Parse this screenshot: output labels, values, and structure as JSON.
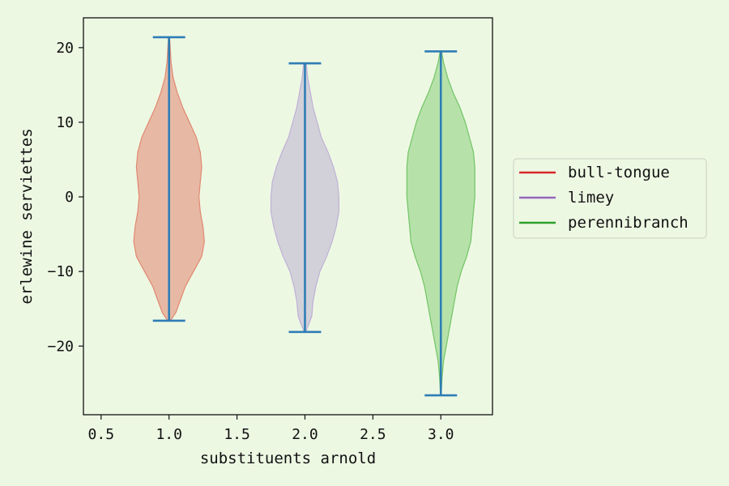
{
  "chart_data": {
    "type": "violin",
    "xlabel": "substituents arnold",
    "ylabel": "erlewine serviettes",
    "xlim": [
      0.37,
      3.38
    ],
    "ylim": [
      -29.2,
      24.0
    ],
    "xticks": [
      0.5,
      1.0,
      1.5,
      2.0,
      2.5,
      3.0
    ],
    "xtick_labels": [
      "0.5",
      "1.0",
      "1.5",
      "2.0",
      "2.5",
      "3.0"
    ],
    "yticks": [
      -20,
      -10,
      0,
      10,
      20
    ],
    "ytick_labels": [
      "−20",
      "−10",
      "0",
      "10",
      "20"
    ],
    "grid": false,
    "legend_position": "right",
    "whisker_color": "#2e7db5",
    "series": [
      {
        "name": "bull-tongue",
        "position": 1.0,
        "line_color": "#d62728",
        "fill_color": "#e27a66",
        "edge_color": "#e08870",
        "min": -16.6,
        "max": 21.4,
        "profile": [
          [
            -16.6,
            0.01
          ],
          [
            -15.5,
            0.05
          ],
          [
            -14,
            0.08
          ],
          [
            -12,
            0.12
          ],
          [
            -10,
            0.18
          ],
          [
            -8,
            0.24
          ],
          [
            -6,
            0.26
          ],
          [
            -4,
            0.25
          ],
          [
            -2,
            0.23
          ],
          [
            0,
            0.22
          ],
          [
            2,
            0.23
          ],
          [
            4,
            0.24
          ],
          [
            6,
            0.23
          ],
          [
            8,
            0.2
          ],
          [
            10,
            0.15
          ],
          [
            12,
            0.1
          ],
          [
            14,
            0.06
          ],
          [
            16,
            0.03
          ],
          [
            18,
            0.015
          ],
          [
            21.4,
            0.004
          ]
        ]
      },
      {
        "name": "limey",
        "position": 2.0,
        "line_color": "#9467bd",
        "fill_color": "#b8a9cf",
        "edge_color": "#c0b0d6",
        "min": -18.1,
        "max": 17.9,
        "profile": [
          [
            -18.1,
            0.005
          ],
          [
            -17,
            0.03
          ],
          [
            -16,
            0.05
          ],
          [
            -14,
            0.06
          ],
          [
            -12,
            0.08
          ],
          [
            -10,
            0.11
          ],
          [
            -8,
            0.16
          ],
          [
            -6,
            0.2
          ],
          [
            -4,
            0.23
          ],
          [
            -2,
            0.25
          ],
          [
            0,
            0.25
          ],
          [
            2,
            0.24
          ],
          [
            4,
            0.21
          ],
          [
            6,
            0.17
          ],
          [
            8,
            0.12
          ],
          [
            10,
            0.09
          ],
          [
            12,
            0.06
          ],
          [
            14,
            0.04
          ],
          [
            16,
            0.02
          ],
          [
            17.9,
            0.01
          ]
        ]
      },
      {
        "name": "perennibranch",
        "position": 3.0,
        "line_color": "#2ca02c",
        "fill_color": "#7fcc72",
        "edge_color": "#72c466",
        "min": -26.6,
        "max": 19.5,
        "profile": [
          [
            -26.6,
            0.002
          ],
          [
            -24,
            0.01
          ],
          [
            -22,
            0.02
          ],
          [
            -20,
            0.04
          ],
          [
            -18,
            0.06
          ],
          [
            -16,
            0.08
          ],
          [
            -14,
            0.1
          ],
          [
            -12,
            0.12
          ],
          [
            -10,
            0.15
          ],
          [
            -8,
            0.19
          ],
          [
            -6,
            0.22
          ],
          [
            -4,
            0.23
          ],
          [
            -2,
            0.24
          ],
          [
            0,
            0.25
          ],
          [
            2,
            0.25
          ],
          [
            4,
            0.25
          ],
          [
            6,
            0.24
          ],
          [
            8,
            0.21
          ],
          [
            10,
            0.18
          ],
          [
            12,
            0.14
          ],
          [
            14,
            0.09
          ],
          [
            16,
            0.05
          ],
          [
            18,
            0.02
          ],
          [
            19.5,
            0.005
          ]
        ]
      }
    ]
  }
}
